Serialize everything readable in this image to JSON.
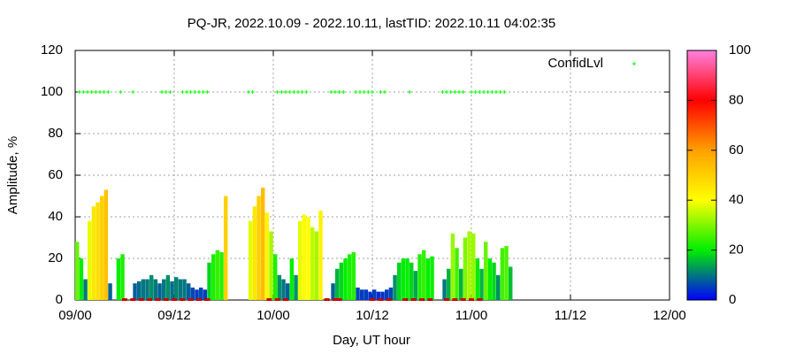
{
  "chart_data": {
    "type": "bar",
    "title": "PQ-JR, 2022.10.09 - 2022.10.11, lastTID: 2022.10.11 04:02:35",
    "xlabel": "Day, UT hour",
    "ylabel": "Amplitude, %",
    "x": [
      0,
      0.5,
      1,
      1.5,
      2,
      2.5,
      3,
      3.5,
      4,
      4.5,
      5,
      5.5,
      6,
      6.5,
      7,
      7.5,
      8,
      8.5,
      9,
      9.5,
      10,
      10.5,
      11,
      11.5,
      12,
      12.5,
      13,
      13.5,
      14,
      14.5,
      15,
      15.5,
      16,
      16.5,
      17,
      17.5,
      18,
      18.5,
      19,
      19.5,
      20,
      20.5,
      21,
      21.5,
      22,
      22.5,
      23,
      23.5,
      24,
      24.5,
      25,
      25.5,
      26,
      26.5,
      27,
      27.5,
      28,
      28.5,
      29,
      29.5,
      30,
      30.5,
      31,
      31.5,
      32,
      32.5,
      33,
      33.5,
      34,
      34.5,
      35,
      35.5,
      36,
      36.5,
      37,
      37.5,
      38,
      38.5,
      39,
      39.5,
      40,
      40.5,
      41,
      41.5,
      42,
      42.5,
      43,
      43.5,
      44,
      44.5,
      45,
      45.5,
      46,
      46.5,
      47,
      47.5,
      48,
      48.5,
      49,
      49.5,
      50,
      50.5,
      51,
      51.5,
      52,
      52.5
    ],
    "values": [
      28,
      20,
      10,
      38,
      45,
      47,
      50,
      53,
      8,
      null,
      20,
      22,
      null,
      null,
      8,
      9,
      10,
      10,
      12,
      10,
      8,
      10,
      12,
      9,
      11,
      10,
      10,
      8,
      6,
      5,
      6,
      5,
      18,
      22,
      24,
      23,
      50,
      null,
      null,
      null,
      null,
      null,
      38,
      45,
      50,
      54,
      42,
      33,
      22,
      12,
      10,
      8,
      20,
      12,
      38,
      41,
      40,
      35,
      33,
      43,
      null,
      null,
      8,
      15,
      18,
      20,
      22,
      23,
      6,
      5,
      5,
      4,
      5,
      4,
      4,
      5,
      6,
      12,
      18,
      20,
      20,
      18,
      14,
      22,
      24,
      20,
      21,
      null,
      null,
      10,
      15,
      32,
      25,
      15,
      30,
      33,
      32,
      20,
      15,
      28,
      20,
      18,
      12,
      25,
      26,
      16
    ],
    "xlim": [
      0,
      72
    ],
    "xticks": [
      {
        "value": 0,
        "label": "09/00"
      },
      {
        "value": 12,
        "label": "09/12"
      },
      {
        "value": 24,
        "label": "10/00"
      },
      {
        "value": 36,
        "label": "10/12"
      },
      {
        "value": 48,
        "label": "11/00"
      },
      {
        "value": 60,
        "label": "11/12"
      },
      {
        "value": 72,
        "label": "12/00"
      }
    ],
    "ylim": [
      0,
      120
    ],
    "yticks": [
      0,
      20,
      40,
      60,
      80,
      100,
      120
    ],
    "grid": true,
    "palette": [
      "#0000ff",
      "#00ee00",
      "#ffff00",
      "#ffa000",
      "#ff0000",
      "#ff80e0"
    ],
    "cblim": [
      0,
      100
    ],
    "cbticks": [
      0,
      20,
      40,
      60,
      80,
      100
    ],
    "legend": "top-right",
    "series": [
      {
        "name": "ConfidLvl",
        "color": "#00ff00",
        "x": [
          0.5,
          1,
          1.5,
          2,
          2.5,
          3,
          3.5,
          4,
          5.5,
          7,
          10.5,
          11,
          11.5,
          13,
          13.5,
          14,
          14.5,
          15,
          15.5,
          16,
          21,
          21.5,
          24.5,
          25,
          25.5,
          26,
          26.5,
          27,
          27.5,
          28,
          31,
          31.5,
          32,
          32.5,
          34,
          34.5,
          35,
          35.5,
          36,
          37,
          37.5,
          40.5,
          44.5,
          45,
          45.5,
          46,
          46.5,
          47,
          48,
          48.5,
          49,
          49.5,
          50,
          50.5,
          51,
          51.5,
          52
        ],
        "values": [
          100,
          100,
          100,
          100,
          100,
          100,
          100,
          100,
          100,
          100,
          100,
          100,
          100,
          100,
          100,
          100,
          100,
          100,
          100,
          100,
          100,
          100,
          100,
          100,
          100,
          100,
          100,
          100,
          100,
          100,
          100,
          100,
          100,
          100,
          100,
          100,
          100,
          100,
          100,
          100,
          100,
          100,
          100,
          100,
          100,
          100,
          100,
          100,
          100,
          100,
          100,
          100,
          100,
          100,
          100,
          100,
          100
        ]
      },
      {
        "color": "#cc0000",
        "x": [
          6,
          7,
          8,
          9,
          10,
          11,
          12,
          13,
          14,
          15,
          16,
          23.5,
          24.5,
          25.5,
          30.5,
          31.5,
          32,
          36,
          37,
          38,
          40,
          41,
          42,
          43,
          45,
          46,
          47,
          48,
          49
        ],
        "values": [
          0,
          0,
          0,
          0,
          0,
          0,
          0,
          0,
          0,
          0,
          0,
          0,
          0,
          0,
          0,
          0,
          0,
          0,
          0,
          0,
          0,
          0,
          0,
          0,
          0,
          0,
          0,
          0,
          0
        ]
      }
    ]
  }
}
